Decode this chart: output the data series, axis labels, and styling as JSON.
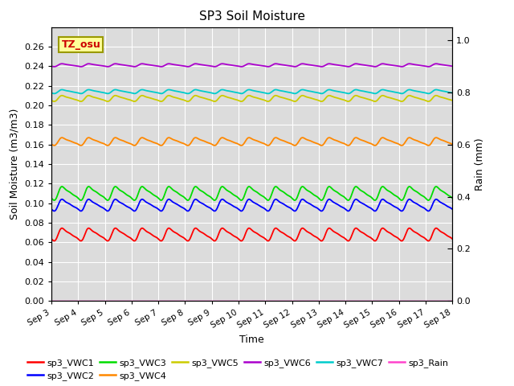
{
  "title": "SP3 Soil Moisture",
  "xlabel": "Time",
  "ylabel_left": "Soil Moisture (m3/m3)",
  "ylabel_right": "Rain (mm)",
  "annotation": "TZ_osu",
  "ylim_left": [
    0.0,
    0.28
  ],
  "ylim_right": [
    0.0,
    1.05
  ],
  "yticks_left": [
    0.0,
    0.02,
    0.04,
    0.06,
    0.08,
    0.1,
    0.12,
    0.14,
    0.16,
    0.18,
    0.2,
    0.22,
    0.24,
    0.26
  ],
  "yticks_right": [
    0.0,
    0.2,
    0.4,
    0.6,
    0.8,
    1.0
  ],
  "xtick_labels": [
    "Sep 3",
    "Sep 4",
    "Sep 5",
    "Sep 6",
    "Sep 7",
    "Sep 8",
    "Sep 9",
    "Sep 10",
    "Sep 11",
    "Sep 12",
    "Sep 13",
    "Sep 14",
    "Sep 15",
    "Sep 16",
    "Sep 17",
    "Sep 18"
  ],
  "series": [
    {
      "name": "sp3_VWC1",
      "color": "#ff0000",
      "base": 0.068,
      "amp": 0.0065,
      "lw": 1.3
    },
    {
      "name": "sp3_VWC2",
      "color": "#0000ff",
      "base": 0.098,
      "amp": 0.006,
      "lw": 1.3
    },
    {
      "name": "sp3_VWC3",
      "color": "#00dd00",
      "base": 0.11,
      "amp": 0.007,
      "lw": 1.3
    },
    {
      "name": "sp3_VWC4",
      "color": "#ff8800",
      "base": 0.163,
      "amp": 0.004,
      "lw": 1.3
    },
    {
      "name": "sp3_VWC5",
      "color": "#cccc00",
      "base": 0.207,
      "amp": 0.003,
      "lw": 1.3
    },
    {
      "name": "sp3_VWC6",
      "color": "#aa00cc",
      "base": 0.241,
      "amp": 0.0015,
      "lw": 1.3
    },
    {
      "name": "sp3_VWC7",
      "color": "#00cccc",
      "base": 0.214,
      "amp": 0.002,
      "lw": 1.3
    },
    {
      "name": "sp3_Rain",
      "color": "#ff44cc",
      "base": 0.0,
      "amp": 0.0,
      "lw": 1.0
    }
  ],
  "legend_entries": [
    {
      "label": "sp3_VWC1",
      "color": "#ff0000"
    },
    {
      "label": "sp3_VWC2",
      "color": "#0000ff"
    },
    {
      "label": "sp3_VWC3",
      "color": "#00dd00"
    },
    {
      "label": "sp3_VWC4",
      "color": "#ff8800"
    },
    {
      "label": "sp3_VWC5",
      "color": "#cccc00"
    },
    {
      "label": "sp3_VWC6",
      "color": "#aa00cc"
    },
    {
      "label": "sp3_VWC7",
      "color": "#00cccc"
    },
    {
      "label": "sp3_Rain",
      "color": "#ff44cc"
    }
  ],
  "bg_color": "#dcdcdc",
  "grid_color": "#ffffff",
  "fig_bg": "#ffffff"
}
